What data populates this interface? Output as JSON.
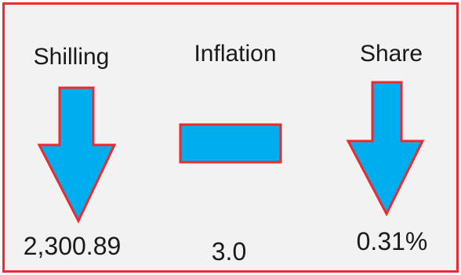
{
  "indicators": [
    {
      "name": "Shilling",
      "value": "2,300.89",
      "trend": "down",
      "icon": "down-arrow-icon"
    },
    {
      "name": "Inflation",
      "value": "3.0",
      "trend": "unchanged",
      "icon": "dash-icon"
    },
    {
      "name": "Share",
      "value": "0.31%",
      "trend": "down",
      "icon": "down-arrow-icon"
    }
  ],
  "colors": {
    "border": "#ee2a2e",
    "background": "#f2f2f2",
    "icon_fill": "#00aeef",
    "icon_stroke": "#ee2a2e",
    "text": "#1a1a1a"
  }
}
